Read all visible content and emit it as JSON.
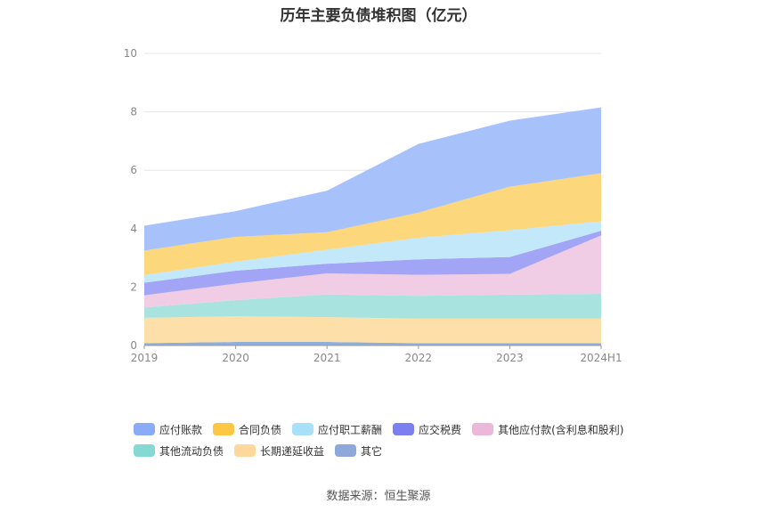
{
  "chart_data": {
    "type": "area",
    "title": "历年主要负债堆积图（亿元）",
    "categories": [
      "2019",
      "2020",
      "2021",
      "2022",
      "2023",
      "2024H1"
    ],
    "ylim": [
      0,
      10
    ],
    "yticks": [
      0,
      2,
      4,
      6,
      8,
      10
    ],
    "grid": true,
    "legend_position": "bottom",
    "series": [
      {
        "name": "其它",
        "color": "#8eaedb",
        "values": [
          0.08,
          0.12,
          0.12,
          0.08,
          0.08,
          0.08
        ]
      },
      {
        "name": "长期递延收益",
        "color": "#fde0a9",
        "values": [
          0.87,
          0.88,
          0.85,
          0.84,
          0.84,
          0.84
        ]
      },
      {
        "name": "其他流动负债",
        "color": "#a8e3e0",
        "values": [
          0.35,
          0.55,
          0.78,
          0.78,
          0.82,
          0.85
        ]
      },
      {
        "name": "其他应付款(含利息和股利)",
        "color": "#f0cde4",
        "values": [
          0.42,
          0.57,
          0.72,
          0.72,
          0.71,
          2.0
        ]
      },
      {
        "name": "应交税费",
        "color": "#a2a5f6",
        "values": [
          0.43,
          0.44,
          0.33,
          0.53,
          0.58,
          0.16
        ]
      },
      {
        "name": "应付职工薪酬",
        "color": "#c3e8f9",
        "values": [
          0.26,
          0.31,
          0.48,
          0.74,
          0.92,
          0.32
        ]
      },
      {
        "name": "合同负债",
        "color": "#fdd77b",
        "values": [
          0.84,
          0.85,
          0.6,
          0.86,
          1.49,
          1.65
        ]
      },
      {
        "name": "应付账款",
        "color": "#a7c1fb",
        "values": [
          0.85,
          0.88,
          1.42,
          2.35,
          2.26,
          2.25
        ]
      }
    ]
  },
  "legend": {
    "rows": [
      [
        {
          "label": "应付账款",
          "color": "#8aabf8"
        },
        {
          "label": "合同负债",
          "color": "#fdc643"
        },
        {
          "label": "应付职工薪酬",
          "color": "#a8e0f8"
        },
        {
          "label": "应交税费",
          "color": "#7b7ff0"
        },
        {
          "label": "其他应付款(含利息和股利)",
          "color": "#ebb8d9"
        }
      ],
      [
        {
          "label": "其他流动负债",
          "color": "#84d9d3"
        },
        {
          "label": "长期递延收益",
          "color": "#fed89a"
        },
        {
          "label": "其它",
          "color": "#8ea9d9"
        }
      ]
    ]
  },
  "footer": {
    "source": "数据来源：恒生聚源"
  }
}
